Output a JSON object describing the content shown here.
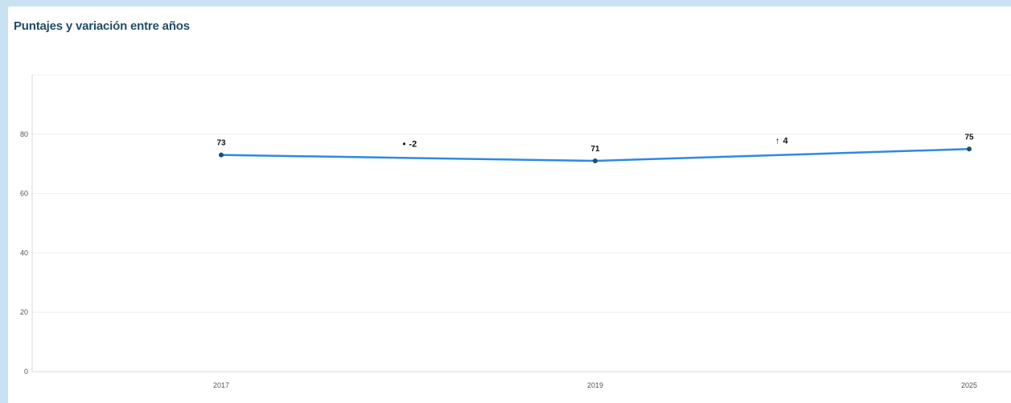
{
  "card": {
    "title": "Puntajes y variación entre años"
  },
  "chart_data": {
    "type": "line",
    "title": "Puntajes y variación entre años",
    "xlabel": "",
    "ylabel": "",
    "x_ticks": [
      "2017",
      "2019",
      "2025"
    ],
    "y_ticks": [
      "0",
      "20",
      "40",
      "60",
      "80"
    ],
    "ylim": [
      0,
      100
    ],
    "grid": true,
    "line_color": "#2d89e6",
    "points": [
      {
        "x": "2017",
        "y": 73,
        "label": "73"
      },
      {
        "x": "2019",
        "y": 71,
        "label": "71"
      },
      {
        "x": "2025",
        "y": 75,
        "label": "75"
      }
    ],
    "variations": [
      {
        "between": [
          "2017",
          "2019"
        ],
        "value": -2,
        "symbol": "•",
        "label": "-2"
      },
      {
        "between": [
          "2019",
          "2025"
        ],
        "value": 4,
        "symbol": "↑",
        "label": "4"
      }
    ]
  }
}
